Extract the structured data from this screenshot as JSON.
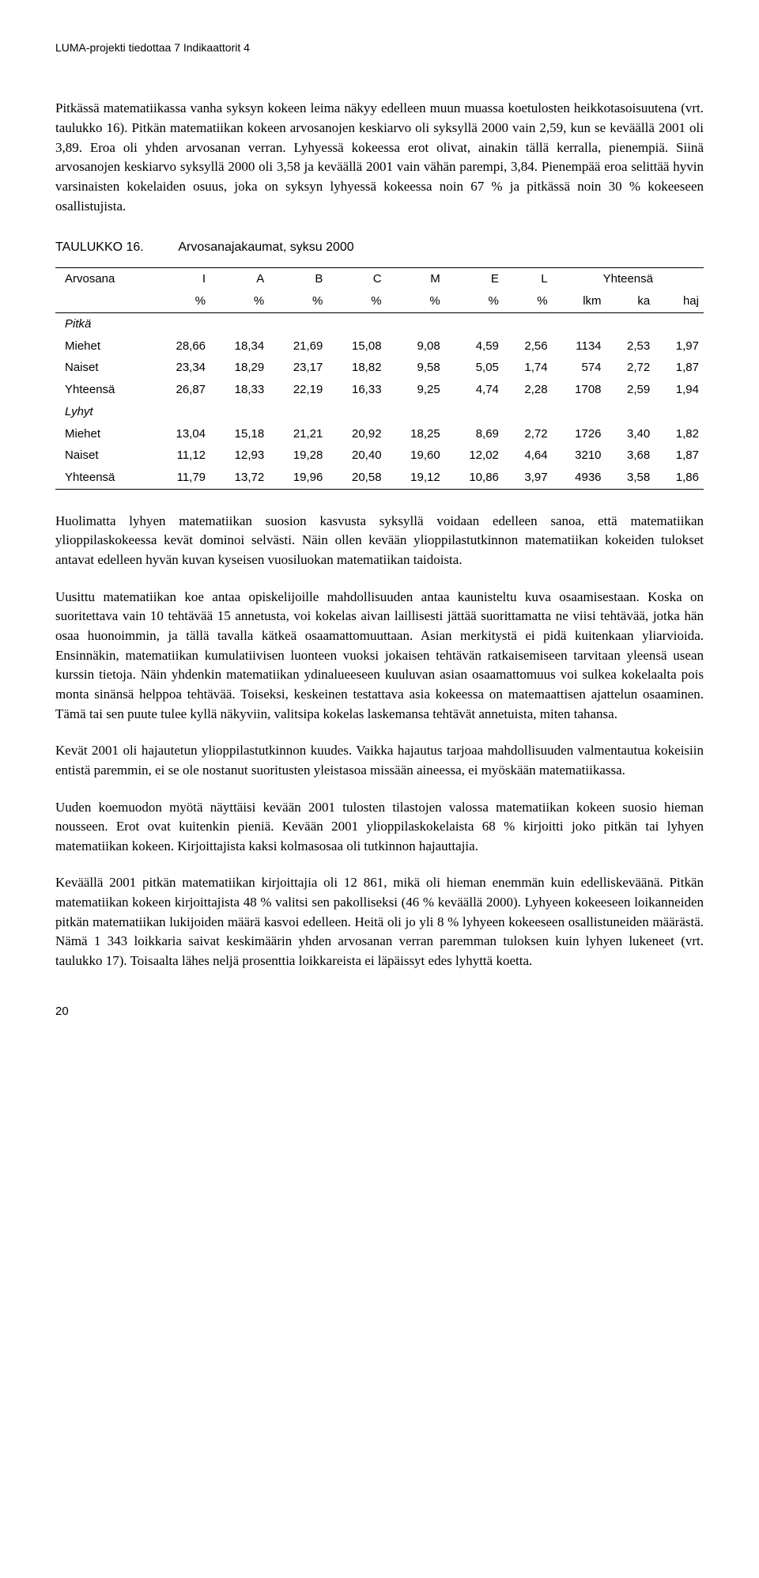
{
  "header": {
    "running": "LUMA-projekti tiedottaa 7   Indikaattorit 4"
  },
  "para1": "Pitkässä matematiikassa vanha syksyn kokeen leima näkyy edelleen muun muassa koetulosten heikkotasoisuutena (vrt. taulukko 16). Pitkän matematiikan kokeen arvosanojen keskiarvo oli syksyllä 2000 vain 2,59, kun se keväällä 2001 oli 3,89. Eroa oli yhden arvosanan verran. Lyhyessä kokeessa erot olivat, ainakin tällä kerralla, pienempiä. Siinä arvosanojen keskiarvo syksyllä 2000 oli 3,58 ja keväällä 2001 vain vähän parempi, 3,84. Pienempää eroa selittää hyvin varsinaisten kokelaiden osuus, joka on syksyn lyhyessä kokeessa noin 67 % ja pitkässä noin 30 % kokeeseen osallistujista.",
  "table": {
    "label_num": "TAULUKKO 16.",
    "label_title": "Arvosanajakaumat, syksu 2000",
    "headers_top": [
      "Arvosana",
      "I",
      "A",
      "B",
      "C",
      "M",
      "E",
      "L",
      "Yhteensä",
      "",
      ""
    ],
    "headers_bot": [
      "",
      "%",
      "%",
      "%",
      "%",
      "%",
      "%",
      "%",
      "lkm",
      "ka",
      "haj"
    ],
    "section1": "Pitkä",
    "rows1": [
      [
        "Miehet",
        "28,66",
        "18,34",
        "21,69",
        "15,08",
        "9,08",
        "4,59",
        "2,56",
        "1134",
        "2,53",
        "1,97"
      ],
      [
        "Naiset",
        "23,34",
        "18,29",
        "23,17",
        "18,82",
        "9,58",
        "5,05",
        "1,74",
        "574",
        "2,72",
        "1,87"
      ],
      [
        "Yhteensä",
        "26,87",
        "18,33",
        "22,19",
        "16,33",
        "9,25",
        "4,74",
        "2,28",
        "1708",
        "2,59",
        "1,94"
      ]
    ],
    "section2": "Lyhyt",
    "rows2": [
      [
        "Miehet",
        "13,04",
        "15,18",
        "21,21",
        "20,92",
        "18,25",
        "8,69",
        "2,72",
        "1726",
        "3,40",
        "1,82"
      ],
      [
        "Naiset",
        "11,12",
        "12,93",
        "19,28",
        "20,40",
        "19,60",
        "12,02",
        "4,64",
        "3210",
        "3,68",
        "1,87"
      ],
      [
        "Yhteensä",
        "11,79",
        "13,72",
        "19,96",
        "20,58",
        "19,12",
        "10,86",
        "3,97",
        "4936",
        "3,58",
        "1,86"
      ]
    ]
  },
  "para2": "Huolimatta lyhyen matematiikan suosion kasvusta syksyllä voidaan edelleen sanoa, että matematiikan ylioppilaskokeessa kevät dominoi selvästi. Näin ollen kevään ylioppilastutkinnon matematiikan kokeiden tulokset antavat edelleen hyvän kuvan kyseisen vuosiluokan matematiikan taidoista.",
  "para3": "Uusittu matematiikan koe antaa opiskelijoille mahdollisuuden antaa kaunisteltu kuva osaamisestaan. Koska on suoritettava vain 10 tehtävää 15 annetusta, voi kokelas aivan laillisesti jättää suorittamatta ne viisi tehtävää, jotka hän osaa huonoimmin, ja tällä tavalla kätkeä osaamattomuuttaan. Asian merkitystä ei pidä kuitenkaan yliarvioida. Ensinnäkin, matematiikan kumulatiivisen luonteen vuoksi jokaisen tehtävän ratkaisemiseen tarvitaan yleensä usean kurssin tietoja. Näin yhdenkin matematiikan ydinalueeseen kuuluvan asian osaamattomuus voi sulkea kokelaalta pois monta sinänsä helppoa tehtävää. Toiseksi, keskeinen testattava asia kokeessa on matemaattisen ajattelun osaaminen. Tämä tai sen puute tulee kyllä näkyviin, valitsipa kokelas laskemansa tehtävät annetuista, miten tahansa.",
  "para4": "Kevät 2001 oli hajautetun ylioppilastutkinnon kuudes. Vaikka hajautus tarjoaa mahdollisuuden valmentautua kokeisiin entistä paremmin, ei se ole nostanut suoritusten yleistasoa missään aineessa, ei myöskään matematiikassa.",
  "para5": "Uuden koemuodon myötä näyttäisi kevään 2001 tulosten tilastojen valossa matematiikan kokeen suosio hieman nousseen. Erot ovat kuitenkin pieniä. Kevään 2001 ylioppilaskokelaista 68 % kirjoitti joko pitkän tai lyhyen matematiikan kokeen. Kirjoittajista kaksi kolmasosaa oli tutkinnon hajauttajia.",
  "para6": "Keväällä 2001 pitkän matematiikan kirjoittajia oli 12 861, mikä oli hieman enemmän kuin edelliskeväänä. Pitkän matematiikan kokeen kirjoittajista 48 % valitsi sen pakolliseksi (46 % keväällä 2000). Lyhyeen kokeeseen loikanneiden pitkän matematiikan lukijoiden määrä kasvoi edelleen. Heitä oli jo yli 8 % lyhyeen kokeeseen osallistuneiden määrästä. Nämä 1 343 loikkaria saivat keskimäärin yhden arvosanan verran paremman tuloksen kuin lyhyen lukeneet (vrt. taulukko 17). Toisaalta lähes neljä prosenttia loikkareista ei läpäissyt edes lyhyttä koetta.",
  "pageno": "20"
}
